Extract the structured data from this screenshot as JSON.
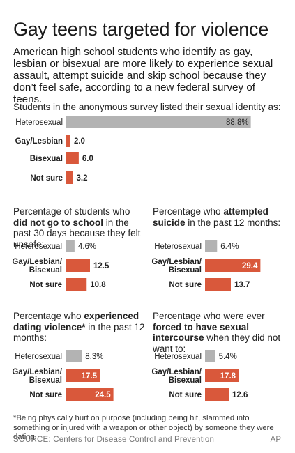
{
  "title": "Gay teens targeted for violence",
  "subtitle": "American high school students who identify as gay, lesbian or bisexual are more likely to experience sexual assault, attempt suicide and skip school because they don’t feel safe, according to a new federal survey of teens.",
  "colors": {
    "gray_bar": "#b3b3b3",
    "orange_bar": "#d9583b"
  },
  "chart_data": [
    {
      "type": "bar",
      "title": "Students in the anonymous survey listed their sexual identity as:",
      "categories": [
        "Heterosexual",
        "Gay/Lesbian",
        "Bisexual",
        "Not sure"
      ],
      "values": [
        88.8,
        2.0,
        6.0,
        3.2
      ],
      "value_labels": [
        "88.8%",
        "2.0",
        "6.0",
        "3.2"
      ]
    },
    {
      "type": "bar",
      "title_parts": [
        "Percentage of students who ",
        "did not go to school",
        " in the past 30 days because they felt unsafe:"
      ],
      "categories": [
        "Heterosexual",
        "Gay/Lesbian/ Bisexual",
        "Not sure"
      ],
      "values": [
        4.6,
        12.5,
        10.8
      ],
      "value_labels": [
        "4.6%",
        "12.5",
        "10.8"
      ]
    },
    {
      "type": "bar",
      "title_parts": [
        "Percentage who ",
        "attempted suicide",
        " in the past 12 months:"
      ],
      "categories": [
        "Heterosexual",
        "Gay/Lesbian/ Bisexual",
        "Not sure"
      ],
      "values": [
        6.4,
        29.4,
        13.7
      ],
      "value_labels": [
        "6.4%",
        "29.4",
        "13.7"
      ]
    },
    {
      "type": "bar",
      "title_parts": [
        "Percentage who ",
        "experienced dating violence*",
        " in the past 12 months:"
      ],
      "categories": [
        "Heterosexual",
        "Gay/Lesbian/ Bisexual",
        "Not sure"
      ],
      "values": [
        8.3,
        17.5,
        24.5
      ],
      "value_labels": [
        "8.3%",
        "17.5",
        "24.5"
      ]
    },
    {
      "type": "bar",
      "title_parts": [
        "Percentage who were ever ",
        "forced to have sexual intercourse",
        " when they did not want to:"
      ],
      "categories": [
        "Heterosexual",
        "Gay/Lesbian/ Bisexual",
        "Not sure"
      ],
      "values": [
        5.4,
        17.8,
        12.6
      ],
      "value_labels": [
        "5.4%",
        "17.8",
        "12.6"
      ]
    }
  ],
  "footnote": "*Being physically hurt on purpose (including being hit, slammed into something or injured with a weapon or other object) by someone they were dating.",
  "source": "SOURCE: Centers for Disease Control and Prevention",
  "credit": "AP"
}
